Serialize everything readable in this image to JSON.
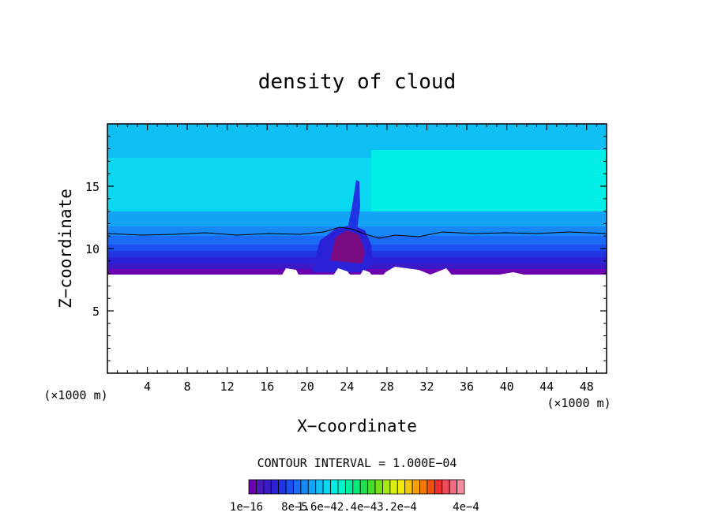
{
  "chart_data": {
    "type": "heatmap",
    "title": "density of cloud",
    "xlabel": "X−coordinate",
    "ylabel": "Z−coordinate",
    "x_unit_left": "(×1000 m)",
    "x_unit_right": "(×1000 m)",
    "xlim": [
      0,
      50
    ],
    "ylim": [
      0,
      20
    ],
    "x_ticks": [
      4,
      8,
      12,
      16,
      20,
      24,
      28,
      32,
      36,
      40,
      44,
      48
    ],
    "y_ticks": [
      5,
      10,
      15
    ],
    "contour_interval_text": "CONTOUR INTERVAL = 1.000E−04",
    "colorbar_labels": [
      "1e−16",
      "8e−5",
      "1.6e−42.4e−43.2e−4",
      "4e−4"
    ],
    "colorbar_colors": [
      "#6a00b0",
      "#4a1ab8",
      "#3a1ac8",
      "#2a20d6",
      "#1f35e2",
      "#1c4ff0",
      "#1a6cf4",
      "#1888f6",
      "#14a4f6",
      "#10bff4",
      "#0ad8f0",
      "#00eee6",
      "#00f4c8",
      "#00f0a0",
      "#06ea78",
      "#20e050",
      "#46dc2c",
      "#78e018",
      "#a8e814",
      "#d8f00c",
      "#f0ea08",
      "#f4c808",
      "#f4a006",
      "#f47806",
      "#f05010",
      "#f02c2c",
      "#f04a58",
      "#f06c80",
      "#f48ca0"
    ]
  }
}
